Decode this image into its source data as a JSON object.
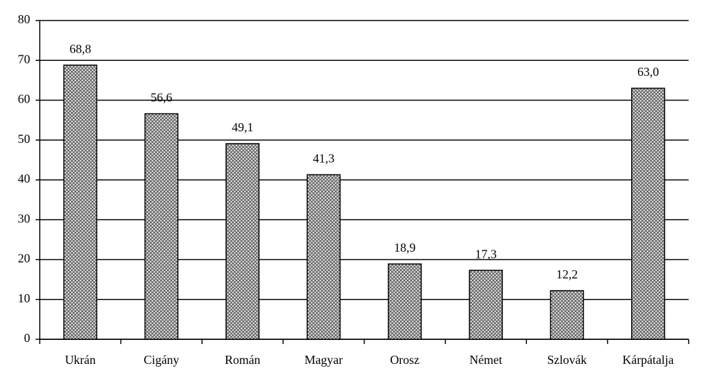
{
  "chart_data": {
    "type": "bar",
    "categories": [
      "Ukrán",
      "Cigány",
      "Román",
      "Magyar",
      "Orosz",
      "Német",
      "Szlovák",
      "Kárpátalja"
    ],
    "values": [
      68.8,
      56.6,
      49.1,
      41.3,
      18.9,
      17.3,
      12.2,
      63.0
    ],
    "value_labels": [
      "68,8",
      "56,6",
      "49,1",
      "41,3",
      "18,9",
      "17,3",
      "12,2",
      "63,0"
    ],
    "color": "#555555",
    "ylim": [
      0,
      80
    ],
    "yticks": [
      0,
      10,
      20,
      30,
      40,
      50,
      60,
      70,
      80
    ],
    "grid": true
  }
}
